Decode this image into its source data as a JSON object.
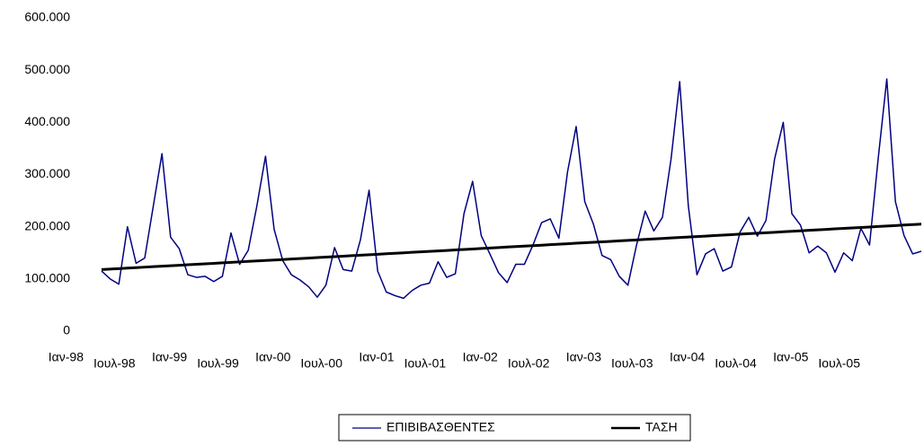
{
  "chart_data": {
    "type": "line",
    "categories": [
      "Ιαν-98",
      null,
      null,
      null,
      null,
      null,
      "Ιουλ-98",
      null,
      null,
      null,
      null,
      null,
      "Ιαν-99",
      null,
      null,
      null,
      null,
      null,
      "Ιουλ-99",
      null,
      null,
      null,
      null,
      null,
      "Ιαν-00",
      null,
      null,
      null,
      null,
      null,
      "Ιουλ-00",
      null,
      null,
      null,
      null,
      null,
      "Ιαν-01",
      null,
      null,
      null,
      null,
      null,
      "Ιουλ-01",
      null,
      null,
      null,
      null,
      null,
      "Ιαν-02",
      null,
      null,
      null,
      null,
      null,
      "Ιουλ-02",
      null,
      null,
      null,
      null,
      null,
      "Ιαν-03",
      null,
      null,
      null,
      null,
      null,
      "Ιουλ-03",
      null,
      null,
      null,
      null,
      null,
      "Ιαν-04",
      null,
      null,
      null,
      null,
      null,
      "Ιουλ-04",
      null,
      null,
      null,
      null,
      null,
      "Ιαν-05",
      null,
      null,
      null,
      null,
      null,
      "Ιουλ-05",
      null,
      null,
      null,
      null,
      null
    ],
    "series": [
      {
        "name": "ΕΠΙΒΙΒΑΣΘΕΝΤΕΣ",
        "color": "#000080",
        "values": [
          115000,
          100000,
          90000,
          200000,
          130000,
          140000,
          240000,
          340000,
          180000,
          158000,
          108000,
          103000,
          105000,
          95000,
          105000,
          188000,
          128000,
          155000,
          240000,
          335000,
          195000,
          135000,
          108000,
          98000,
          85000,
          65000,
          88000,
          160000,
          118000,
          115000,
          175000,
          270000,
          115000,
          75000,
          68000,
          63000,
          78000,
          88000,
          92000,
          133000,
          103000,
          110000,
          225000,
          287000,
          183000,
          148000,
          112000,
          93000,
          128000,
          128000,
          165000,
          208000,
          215000,
          178000,
          305000,
          392000,
          248000,
          205000,
          145000,
          137000,
          105000,
          88000,
          165000,
          230000,
          192000,
          218000,
          330000,
          478000,
          240000,
          108000,
          148000,
          158000,
          115000,
          123000,
          190000,
          218000,
          182000,
          212000,
          330000,
          400000,
          225000,
          203000,
          150000,
          163000,
          150000,
          113000,
          150000,
          135000,
          197000,
          165000,
          330000,
          483000,
          248000,
          183000,
          148000,
          153000
        ]
      },
      {
        "name": "ΤΑΣΗ",
        "color": "#000000",
        "values": [
          118000,
          118900,
          119800,
          120700,
          121700,
          122600,
          123500,
          124400,
          125300,
          126200,
          127200,
          128100,
          129000,
          129900,
          130800,
          131700,
          132700,
          133600,
          134500,
          135400,
          136300,
          137200,
          138200,
          139100,
          140000,
          140900,
          141800,
          142700,
          143600,
          144600,
          145500,
          146400,
          147300,
          148200,
          149100,
          150100,
          151000,
          151900,
          152800,
          153700,
          154600,
          155600,
          156500,
          157400,
          158300,
          159200,
          160100,
          161100,
          162000,
          162900,
          163800,
          164700,
          165600,
          166500,
          167500,
          168400,
          169300,
          170200,
          171100,
          172000,
          173000,
          173900,
          174800,
          175700,
          176600,
          177500,
          178500,
          179400,
          180300,
          181200,
          182100,
          183000,
          184000,
          184900,
          185800,
          186700,
          187600,
          188500,
          189400,
          190400,
          191300,
          192200,
          193100,
          194000,
          194900,
          195900,
          196800,
          197700,
          198600,
          199500,
          200400,
          201400,
          202300,
          203200,
          204100,
          205000
        ]
      }
    ],
    "ylim": [
      0,
      600000
    ],
    "yticks": [
      0,
      {
        "value": 100000,
        "label": "100.000"
      },
      {
        "value": 200000,
        "label": "200.000"
      },
      {
        "value": 300000,
        "label": "300.000"
      },
      {
        "value": 400000,
        "label": "400.000"
      },
      {
        "value": 500000,
        "label": "500.000"
      },
      {
        "value": 600000,
        "label": "600.000"
      }
    ],
    "legend": "bottom"
  }
}
